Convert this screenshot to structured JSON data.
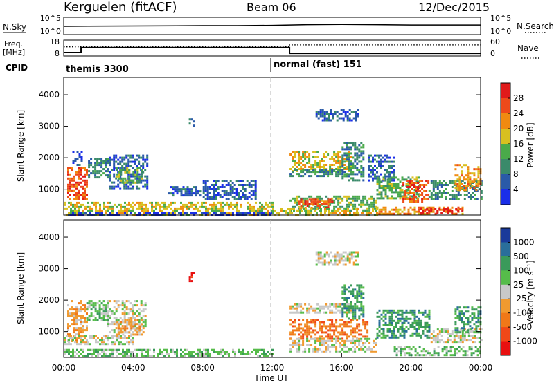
{
  "header": {
    "station": "Kerguelen (fitACF)",
    "beam": "Beam 06",
    "date": "12/Dec/2015"
  },
  "colors": {
    "power": [
      "#1a2ee8",
      "#2a5aa8",
      "#3a8a6a",
      "#4aaa4a",
      "#d8c020",
      "#f08a10",
      "#ee4a1a",
      "#e01a1a"
    ],
    "velocity": [
      "#e81010",
      "#f04818",
      "#f07818",
      "#f09a30",
      "#c8c8c8",
      "#56bc4a",
      "#3a9a5a",
      "#2a6e9a",
      "#1a3a9a"
    ],
    "dashed_line": "#b4b4b4"
  },
  "chart_data": [
    {
      "type": "line",
      "panel": "nsky",
      "left_label": "N.Sky",
      "left_ticks": [
        "10^5",
        "10^0"
      ],
      "right_label": "N.Search",
      "right_ticks": [
        "10^5",
        "10^0"
      ],
      "x": [
        0,
        4,
        8,
        10,
        12,
        14,
        16,
        18,
        20,
        22,
        24
      ],
      "series": [
        {
          "values": [
            2.4,
            2.5,
            2.6,
            2.6,
            2.7,
            2.9,
            3.0,
            2.9,
            2.8,
            2.8,
            2.8
          ]
        }
      ]
    },
    {
      "type": "line",
      "panel": "freq",
      "left_label": "Freq.",
      "left_unit": "[MHz]",
      "left_ticks": [
        "18",
        "8"
      ],
      "right_label": "Nave",
      "right_ticks": [
        "60",
        "0"
      ],
      "series": [
        {
          "style": "solid",
          "x": [
            0,
            1,
            1,
            13,
            13,
            24
          ],
          "values": [
            10.2,
            10.2,
            13.3,
            13.3,
            9.7,
            9.7
          ]
        },
        {
          "style": "dotted",
          "x": [
            0,
            13,
            13,
            24
          ],
          "values": [
            13.8,
            13.8,
            15.0,
            15.0
          ]
        }
      ]
    },
    {
      "type": "table",
      "panel": "cpid",
      "label": "CPID",
      "segments": [
        {
          "start": 0,
          "end": 12,
          "name": "themis 3300"
        },
        {
          "start": 12,
          "end": 24,
          "name": "normal (fast) 151"
        }
      ]
    },
    {
      "type": "heatmap",
      "panel": "power",
      "ylabel": "Slant Range [km]",
      "yticks": [
        1000,
        2000,
        3000,
        4000
      ],
      "ylim": [
        180,
        4550
      ],
      "xlim": [
        0,
        24
      ],
      "colorbar": {
        "label": "Power [dB]",
        "ticks": [
          "28",
          "24",
          "20",
          "16",
          "12",
          "8",
          "4"
        ],
        "range": [
          0,
          32
        ]
      },
      "regions": [
        {
          "t": [
            0.2,
            1.3
          ],
          "r": [
            700,
            1700
          ],
          "c": 6
        },
        {
          "t": [
            0.5,
            1.0
          ],
          "r": [
            1750,
            2200
          ],
          "c": 1
        },
        {
          "t": [
            1.4,
            2.6
          ],
          "r": [
            1350,
            2000
          ],
          "c": 2
        },
        {
          "t": [
            2.6,
            4.8
          ],
          "r": [
            1000,
            2100
          ],
          "c": 1
        },
        {
          "t": [
            3.0,
            4.5
          ],
          "r": [
            1200,
            1700
          ],
          "c": 3
        },
        {
          "t": [
            6.0,
            7.8
          ],
          "r": [
            800,
            1100
          ],
          "c": 1
        },
        {
          "t": [
            8.0,
            11.0
          ],
          "r": [
            700,
            1300
          ],
          "c": 1
        },
        {
          "t": [
            0.0,
            12.0
          ],
          "r": [
            200,
            600
          ],
          "c": 4
        },
        {
          "t": [
            0.0,
            12.0
          ],
          "r": [
            180,
            290
          ],
          "c": 0
        },
        {
          "t": [
            13.0,
            16.5
          ],
          "r": [
            1600,
            2200
          ],
          "c": 4
        },
        {
          "t": [
            13.0,
            16.5
          ],
          "r": [
            1400,
            1650
          ],
          "c": 2
        },
        {
          "t": [
            13.0,
            18.0
          ],
          "r": [
            300,
            800
          ],
          "c": 3
        },
        {
          "t": [
            13.5,
            15.5
          ],
          "r": [
            400,
            700
          ],
          "c": 6
        },
        {
          "t": [
            16.0,
            17.2
          ],
          "r": [
            1300,
            2500
          ],
          "c": 2
        },
        {
          "t": [
            17.5,
            19.0
          ],
          "r": [
            1300,
            2100
          ],
          "c": 1
        },
        {
          "t": [
            18.0,
            20.5
          ],
          "r": [
            700,
            1400
          ],
          "c": 3
        },
        {
          "t": [
            19.5,
            21.0
          ],
          "r": [
            600,
            1300
          ],
          "c": 6
        },
        {
          "t": [
            21.0,
            24.0
          ],
          "r": [
            700,
            1300
          ],
          "c": 2
        },
        {
          "t": [
            22.5,
            24.0
          ],
          "r": [
            1000,
            1800
          ],
          "c": 5
        },
        {
          "t": [
            18.0,
            23.0
          ],
          "r": [
            250,
            450
          ],
          "c": 5
        },
        {
          "t": [
            20.5,
            23.0
          ],
          "r": [
            250,
            400
          ],
          "c": 7
        },
        {
          "t": [
            12.0,
            18.0
          ],
          "r": [
            200,
            400
          ],
          "c": 4
        },
        {
          "t": [
            14.5,
            17.0
          ],
          "r": [
            3200,
            3550
          ],
          "c": 1
        },
        {
          "t": [
            7.2,
            7.5
          ],
          "r": [
            3000,
            3250
          ],
          "c": 2
        }
      ]
    },
    {
      "type": "heatmap",
      "panel": "velocity",
      "xlabel": "Time UT",
      "ylabel": "Slant Range [km]",
      "yticks": [
        1000,
        2000,
        3000,
        4000
      ],
      "ylim": [
        180,
        4550
      ],
      "xlim": [
        0,
        24
      ],
      "xticks": [
        "00:00",
        "04:00",
        "08:00",
        "12:00",
        "16:00",
        "20:00",
        "00:00"
      ],
      "colorbar": {
        "label": "Velocity [m s⁻¹]",
        "ticks": [
          "1000",
          "500",
          "100",
          "25",
          "-25",
          "-100",
          "-500",
          "-1000"
        ],
        "range": [
          -1250,
          1250
        ]
      },
      "regions": [
        {
          "t": [
            0.2,
            1.3
          ],
          "r": [
            700,
            2000
          ],
          "c": 3
        },
        {
          "t": [
            1.3,
            2.5
          ],
          "r": [
            1350,
            2000
          ],
          "c": 5
        },
        {
          "t": [
            2.5,
            4.7
          ],
          "r": [
            1000,
            2000
          ],
          "c": 4
        },
        {
          "t": [
            3.0,
            4.5
          ],
          "r": [
            900,
            1400
          ],
          "c": 3
        },
        {
          "t": [
            0.0,
            4.0
          ],
          "r": [
            600,
            900
          ],
          "c": 4
        },
        {
          "t": [
            0.0,
            12.0
          ],
          "r": [
            200,
            450
          ],
          "c": 5
        },
        {
          "t": [
            13.0,
            16.5
          ],
          "r": [
            1600,
            1900
          ],
          "c": 4
        },
        {
          "t": [
            13.0,
            17.5
          ],
          "r": [
            800,
            1400
          ],
          "c": 2
        },
        {
          "t": [
            13.0,
            18.0
          ],
          "r": [
            400,
            800
          ],
          "c": 4
        },
        {
          "t": [
            16.0,
            17.2
          ],
          "r": [
            1400,
            2500
          ],
          "c": 6
        },
        {
          "t": [
            18.0,
            21.0
          ],
          "r": [
            800,
            1700
          ],
          "c": 6
        },
        {
          "t": [
            21.0,
            24.0
          ],
          "r": [
            700,
            1100
          ],
          "c": 4
        },
        {
          "t": [
            22.5,
            24.0
          ],
          "r": [
            1000,
            1800
          ],
          "c": 6
        },
        {
          "t": [
            19.0,
            24.0
          ],
          "r": [
            250,
            550
          ],
          "c": 5
        },
        {
          "t": [
            14.5,
            17.0
          ],
          "r": [
            3100,
            3550
          ],
          "c": 4
        },
        {
          "t": [
            7.2,
            7.5
          ],
          "r": [
            2600,
            2900
          ],
          "c": 0
        }
      ]
    }
  ]
}
